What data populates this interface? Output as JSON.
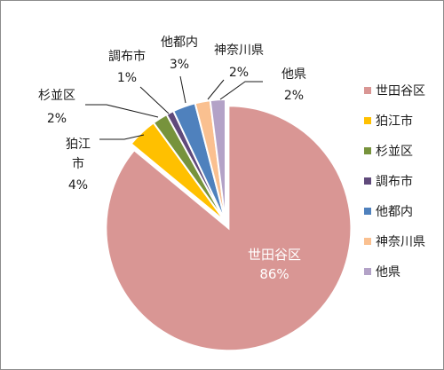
{
  "chart_data": {
    "type": "pie",
    "title": "",
    "legend_position": "right",
    "slices": [
      {
        "label": "世田谷区",
        "value": 86,
        "value_label": "86%",
        "color": "#d99694"
      },
      {
        "label": "狛江市",
        "value": 4,
        "value_label": "4%",
        "color": "#ffc000"
      },
      {
        "label": "杉並区",
        "value": 2,
        "value_label": "2%",
        "color": "#77933c"
      },
      {
        "label": "調布市",
        "value": 1,
        "value_label": "1%",
        "color": "#604a7b"
      },
      {
        "label": "他都内",
        "value": 3,
        "value_label": "3%",
        "color": "#4f81bd"
      },
      {
        "label": "神奈川県",
        "value": 2,
        "value_label": "2%",
        "color": "#fac090"
      },
      {
        "label": "他県",
        "value": 2,
        "value_label": "2%",
        "color": "#b3a2c7"
      }
    ]
  }
}
